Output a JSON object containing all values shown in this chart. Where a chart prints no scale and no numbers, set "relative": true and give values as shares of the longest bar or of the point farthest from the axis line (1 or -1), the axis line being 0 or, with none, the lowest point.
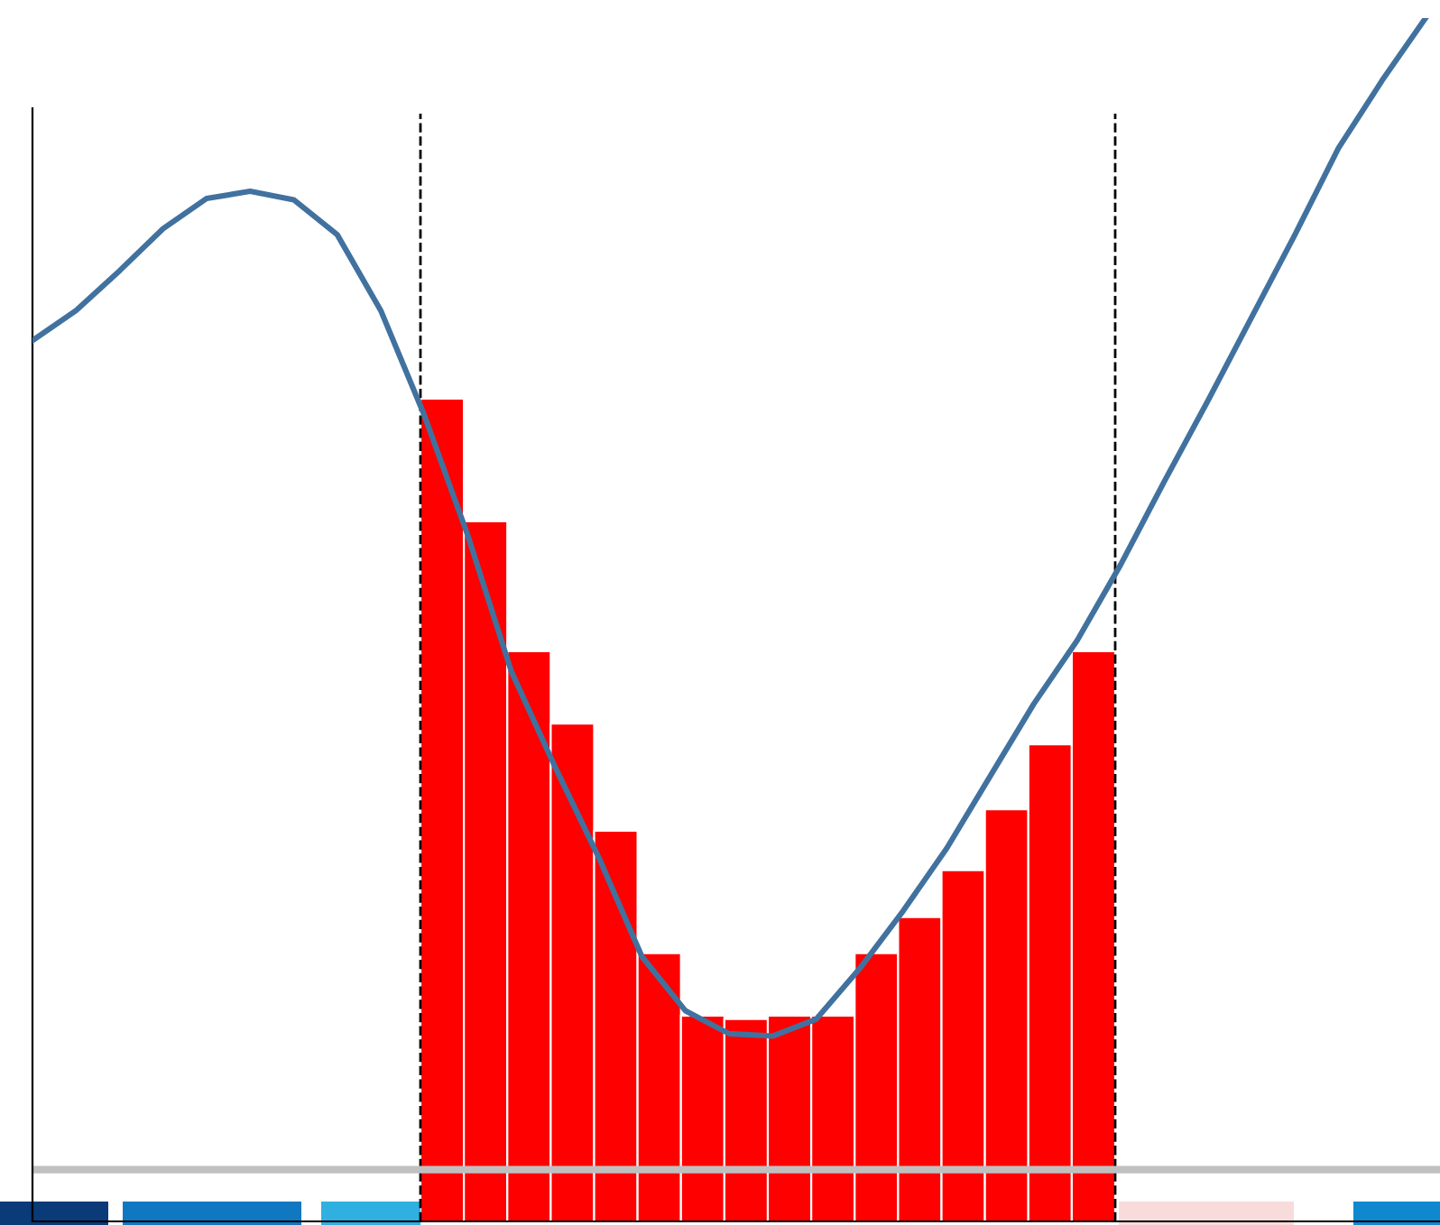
{
  "chart_data": [
    {
      "type": "line",
      "relative": true,
      "tick_labels": false,
      "color": "#41729f",
      "line_style": "solid",
      "categories": [
        null,
        null,
        null,
        null,
        null,
        null,
        null,
        null,
        null,
        null,
        null,
        null,
        null,
        null,
        null,
        null,
        null,
        null,
        null,
        null,
        null,
        null,
        null,
        null,
        null,
        null,
        null,
        null,
        null,
        null,
        null,
        null,
        null
      ],
      "values": [
        0.732,
        0.757,
        0.79,
        0.825,
        0.85,
        0.856,
        0.849,
        0.82,
        0.757,
        0.67,
        0.57,
        0.457,
        0.378,
        0.303,
        0.22,
        0.175,
        0.156,
        0.154,
        0.168,
        0.21,
        0.258,
        0.31,
        0.37,
        0.43,
        0.483,
        0.546,
        0.615,
        0.682,
        0.751,
        0.82,
        0.892,
        0.948,
        1.0
      ],
      "ref_lines": [
        {
          "axis": "y",
          "value": 0.043,
          "color": "#c0c0c0",
          "line_style": "solid"
        }
      ]
    },
    {
      "type": "bar",
      "relative": true,
      "tick_labels": false,
      "color": "#ff0000",
      "categories": [
        null,
        null,
        null,
        null,
        null,
        null,
        null,
        null,
        null,
        null,
        null,
        null,
        null,
        null,
        null,
        null
      ],
      "values": [
        1.0,
        0.851,
        0.693,
        0.605,
        0.475,
        0.326,
        0.25,
        0.246,
        0.25,
        0.25,
        0.326,
        0.37,
        0.427,
        0.501,
        0.58,
        0.693
      ]
    }
  ]
}
